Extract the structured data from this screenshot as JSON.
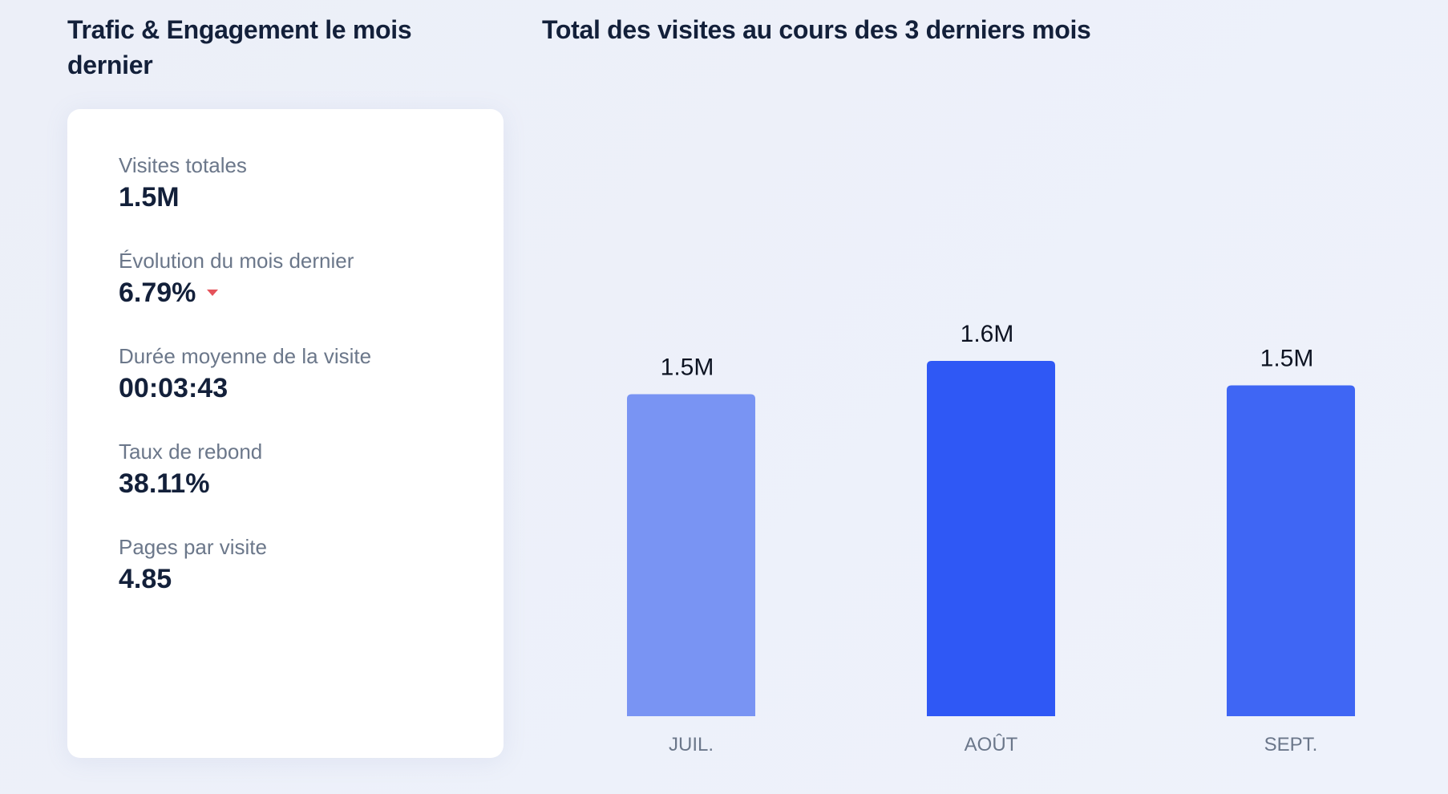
{
  "left_panel": {
    "title": "Trafic & Engagement le mois dernier",
    "metrics": [
      {
        "label": "Visites totales",
        "value": "1.5M"
      },
      {
        "label": "Évolution du mois dernier",
        "value": "6.79%",
        "trend": "down",
        "trend_color": "#e5535b"
      },
      {
        "label": "Durée moyenne de la visite",
        "value": "00:03:43"
      },
      {
        "label": "Taux de rebond",
        "value": "38.11%"
      },
      {
        "label": "Pages par visite",
        "value": "4.85"
      }
    ]
  },
  "chart_data": {
    "type": "bar",
    "title": "Total des visites au cours des 3 derniers mois",
    "categories": [
      "JUIL.",
      "AOÛT",
      "SEPT."
    ],
    "values": [
      1.45,
      1.6,
      1.49
    ],
    "value_unit": "M",
    "data_labels": [
      "1.5M",
      "1.6M",
      "1.5M"
    ],
    "colors": [
      "#7994f3",
      "#2f58f5",
      "#3f66f4"
    ],
    "xlabel": "",
    "ylabel": "",
    "ylim": [
      0,
      1.6
    ],
    "grid": false
  }
}
